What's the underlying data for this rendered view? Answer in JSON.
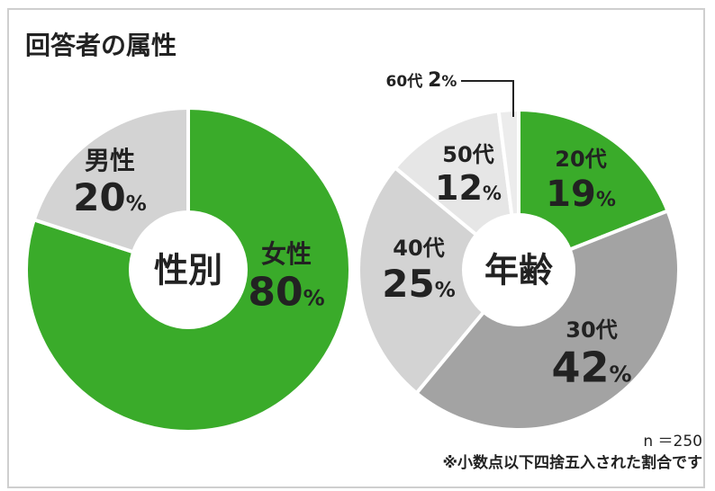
{
  "title": "回答者の属性",
  "chart_data": [
    {
      "type": "pie",
      "center_label": "性別",
      "categories": [
        "女性",
        "男性"
      ],
      "values": [
        80,
        20
      ],
      "unit": "%",
      "colors": [
        "#3aab2a",
        "#d3d3d3"
      ],
      "label_colors": [
        "#222222",
        "#222222"
      ]
    },
    {
      "type": "pie",
      "center_label": "年齢",
      "categories": [
        "20代",
        "30代",
        "40代",
        "50代",
        "60代"
      ],
      "values": [
        19,
        42,
        25,
        12,
        2
      ],
      "unit": "%",
      "colors": [
        "#3aab2a",
        "#a3a3a3",
        "#d3d3d3",
        "#e6e6e6",
        "#ececec"
      ],
      "label_colors": [
        "#222222",
        "#222222",
        "#222222",
        "#222222",
        "#222222"
      ]
    }
  ],
  "footer": {
    "n": "n ＝250",
    "note": "※小数点以下四捨五入された割合です"
  }
}
